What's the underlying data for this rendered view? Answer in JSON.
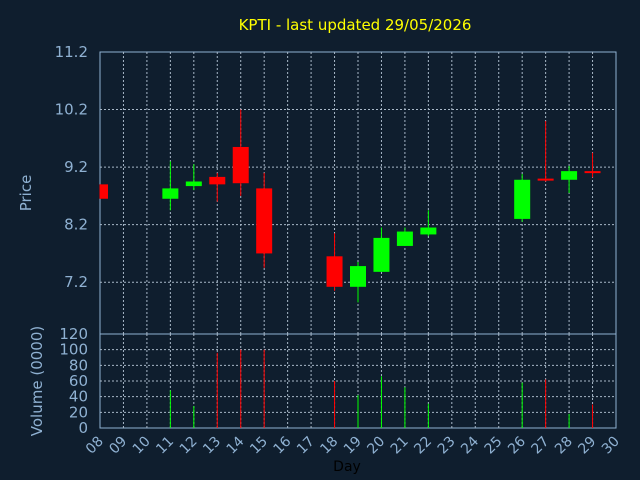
{
  "chart_data": {
    "type": "candlestick",
    "title": "KPTI - last updated 29/05/2026",
    "xlabel": "Day",
    "price_panel": {
      "ylabel": "Price",
      "ylim": [
        6.3,
        11.2
      ],
      "yticks": [
        "7.2",
        "8.2",
        "9.2",
        "10.2",
        "11.2"
      ],
      "grid": true
    },
    "volume_panel": {
      "ylabel": "Volume (0000)",
      "ylim": [
        0,
        120
      ],
      "yticks": [
        "0",
        "20",
        "40",
        "60",
        "80",
        "100",
        "120"
      ],
      "grid": true
    },
    "x_ticks": [
      "08",
      "09",
      "10",
      "11",
      "12",
      "13",
      "14",
      "15",
      "16",
      "17",
      "18",
      "19",
      "20",
      "21",
      "22",
      "23",
      "24",
      "25",
      "26",
      "27",
      "28",
      "29",
      "30"
    ],
    "candles": [
      {
        "day": "08",
        "open": 8.9,
        "close": 8.65,
        "high": 8.9,
        "low": 8.65,
        "volume": 0
      },
      {
        "day": "11",
        "open": 8.65,
        "close": 8.83,
        "high": 9.3,
        "low": 8.45,
        "volume": 48
      },
      {
        "day": "12",
        "open": 8.87,
        "close": 8.95,
        "high": 9.25,
        "low": 8.8,
        "volume": 28
      },
      {
        "day": "13",
        "open": 9.03,
        "close": 8.9,
        "high": 9.1,
        "low": 8.6,
        "volume": 96
      },
      {
        "day": "14",
        "open": 9.55,
        "close": 8.92,
        "high": 10.2,
        "low": 8.7,
        "volume": 100
      },
      {
        "day": "15",
        "open": 8.83,
        "close": 7.7,
        "high": 9.1,
        "low": 7.45,
        "volume": 100
      },
      {
        "day": "18",
        "open": 7.65,
        "close": 7.12,
        "high": 8.05,
        "low": 7.05,
        "volume": 60
      },
      {
        "day": "19",
        "open": 7.12,
        "close": 7.48,
        "high": 7.55,
        "low": 6.85,
        "volume": 42
      },
      {
        "day": "20",
        "open": 7.38,
        "close": 7.97,
        "high": 8.15,
        "low": 7.38,
        "volume": 66
      },
      {
        "day": "21",
        "open": 7.83,
        "close": 8.08,
        "high": 8.15,
        "low": 7.83,
        "volume": 52
      },
      {
        "day": "22",
        "open": 8.03,
        "close": 8.15,
        "high": 8.45,
        "low": 8.0,
        "volume": 31
      },
      {
        "day": "26",
        "open": 8.3,
        "close": 8.98,
        "high": 9.08,
        "low": 8.25,
        "volume": 58
      },
      {
        "day": "27",
        "open": 9.0,
        "close": 8.98,
        "high": 10.0,
        "low": 8.95,
        "volume": 62
      },
      {
        "day": "28",
        "open": 8.98,
        "close": 9.13,
        "high": 9.22,
        "low": 8.75,
        "volume": 18
      },
      {
        "day": "29",
        "open": 9.13,
        "close": 9.1,
        "high": 9.45,
        "low": 9.02,
        "volume": 30
      }
    ]
  },
  "colors": {
    "background": "#0f1e2e",
    "panel_border": "#8fb1d2",
    "grid": "#a8b8c8",
    "title": "#ffff00",
    "axis_text": "#8fb1d2",
    "up": "#00ff00",
    "down": "#ff0000"
  }
}
